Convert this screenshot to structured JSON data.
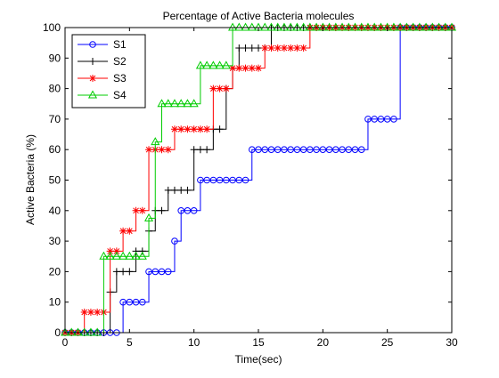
{
  "chart_data": {
    "type": "line",
    "title": "Percentage of Active Bacteria molecules",
    "xlabel": "Time(sec)",
    "ylabel": "Active Bacteria (%)",
    "xlim": [
      0,
      30
    ],
    "ylim": [
      0,
      100
    ],
    "xticks": [
      0,
      5,
      10,
      15,
      20,
      25,
      30
    ],
    "yticks": [
      0,
      10,
      20,
      30,
      40,
      50,
      60,
      70,
      80,
      90,
      100
    ],
    "grid": false,
    "legend_position": "top-left",
    "series": [
      {
        "name": "S1",
        "color": "#0000ff",
        "marker": "circle",
        "x": [
          0,
          0.5,
          1,
          1.5,
          2,
          2.5,
          3,
          3.5,
          4,
          4.5,
          5,
          5.5,
          6,
          6.5,
          7,
          7.5,
          8,
          8.5,
          9,
          9.5,
          10,
          10.5,
          11,
          11.5,
          12,
          12.5,
          13,
          13.5,
          14,
          14.5,
          15,
          15.5,
          16,
          16.5,
          17,
          17.5,
          18,
          18.5,
          19,
          19.5,
          20,
          20.5,
          21,
          21.5,
          22,
          22.5,
          23,
          23.5,
          24,
          24.5,
          25,
          25.5,
          26,
          26.5,
          27,
          27.5,
          28,
          28.5,
          29,
          29.5,
          30
        ],
        "y": [
          0,
          0,
          0,
          0,
          0,
          0,
          0,
          0,
          0,
          10,
          10,
          10,
          10,
          20,
          20,
          20,
          20,
          30,
          40,
          40,
          40,
          50,
          50,
          50,
          50,
          50,
          50,
          50,
          50,
          60,
          60,
          60,
          60,
          60,
          60,
          60,
          60,
          60,
          60,
          60,
          60,
          60,
          60,
          60,
          60,
          60,
          60,
          70,
          70,
          70,
          70,
          70,
          100,
          100,
          100,
          100,
          100,
          100,
          100,
          100,
          100
        ]
      },
      {
        "name": "S2",
        "color": "#000000",
        "marker": "plus",
        "x": [
          0,
          0.5,
          1,
          1.5,
          2,
          2.5,
          3,
          3.5,
          4,
          4.5,
          5,
          5.5,
          6,
          6.5,
          7,
          7.5,
          8,
          8.5,
          9,
          9.5,
          10,
          10.5,
          11,
          11.5,
          12,
          12.5,
          13,
          13.5,
          14,
          14.5,
          15,
          15.5,
          16,
          16.5,
          17,
          17.5,
          18,
          18.5,
          19,
          19.5,
          20,
          20.5,
          21,
          21.5,
          22,
          22.5,
          23,
          23.5,
          24,
          24.5,
          25,
          25.5,
          26,
          26.5,
          27,
          27.5,
          28,
          28.5,
          29,
          29.5,
          30
        ],
        "y": [
          0,
          0,
          0,
          0,
          0,
          0,
          0,
          13.3,
          20,
          20,
          20,
          26.7,
          26.7,
          33.3,
          40,
          40,
          46.7,
          46.7,
          46.7,
          46.7,
          60,
          60,
          60,
          66.7,
          66.7,
          80,
          86.7,
          93.3,
          93.3,
          93.3,
          93.3,
          93.3,
          100,
          100,
          100,
          100,
          100,
          100,
          100,
          100,
          100,
          100,
          100,
          100,
          100,
          100,
          100,
          100,
          100,
          100,
          100,
          100,
          100,
          100,
          100,
          100,
          100,
          100,
          100,
          100,
          100
        ]
      },
      {
        "name": "S3",
        "color": "#ff0000",
        "marker": "star",
        "x": [
          0,
          0.5,
          1,
          1.5,
          2,
          2.5,
          3,
          3.5,
          4,
          4.5,
          5,
          5.5,
          6,
          6.5,
          7,
          7.5,
          8,
          8.5,
          9,
          9.5,
          10,
          10.5,
          11,
          11.5,
          12,
          12.5,
          13,
          13.5,
          14,
          14.5,
          15,
          15.5,
          16,
          16.5,
          17,
          17.5,
          18,
          18.5,
          19,
          19.5,
          20,
          20.5,
          21,
          21.5,
          22,
          22.5,
          23,
          23.5,
          24,
          24.5,
          25,
          25.5,
          26,
          26.5,
          27,
          27.5,
          28,
          28.5,
          29,
          29.5,
          30
        ],
        "y": [
          0,
          0,
          0,
          6.7,
          6.7,
          6.7,
          6.7,
          26.7,
          26.7,
          33.3,
          33.3,
          40,
          40,
          60,
          60,
          60,
          60,
          66.7,
          66.7,
          66.7,
          66.7,
          66.7,
          66.7,
          80,
          80,
          80,
          86.7,
          86.7,
          86.7,
          86.7,
          86.7,
          93.3,
          93.3,
          93.3,
          93.3,
          93.3,
          93.3,
          93.3,
          100,
          100,
          100,
          100,
          100,
          100,
          100,
          100,
          100,
          100,
          100,
          100,
          100,
          100,
          100,
          100,
          100,
          100,
          100,
          100,
          100,
          100,
          100
        ]
      },
      {
        "name": "S4",
        "color": "#00cc00",
        "marker": "triangle",
        "x": [
          0,
          0.5,
          1,
          1.5,
          2,
          2.5,
          3,
          3.5,
          4,
          4.5,
          5,
          5.5,
          6,
          6.5,
          7,
          7.5,
          8,
          8.5,
          9,
          9.5,
          10,
          10.5,
          11,
          11.5,
          12,
          12.5,
          13,
          13.5,
          14,
          14.5,
          15,
          15.5,
          16,
          16.5,
          17,
          17.5,
          18,
          18.5,
          19,
          19.5,
          20,
          20.5,
          21,
          21.5,
          22,
          22.5,
          23,
          23.5,
          24,
          24.5,
          25,
          25.5,
          26,
          26.5,
          27,
          27.5,
          28,
          28.5,
          29,
          29.5,
          30
        ],
        "y": [
          0,
          0,
          0,
          0,
          0,
          0,
          25,
          25,
          25,
          25,
          25,
          25,
          25,
          37.5,
          62.5,
          75,
          75,
          75,
          75,
          75,
          75,
          87.5,
          87.5,
          87.5,
          87.5,
          87.5,
          100,
          100,
          100,
          100,
          100,
          100,
          100,
          100,
          100,
          100,
          100,
          100,
          100,
          100,
          100,
          100,
          100,
          100,
          100,
          100,
          100,
          100,
          100,
          100,
          100,
          100,
          100,
          100,
          100,
          100,
          100,
          100,
          100,
          100,
          100
        ]
      }
    ]
  }
}
